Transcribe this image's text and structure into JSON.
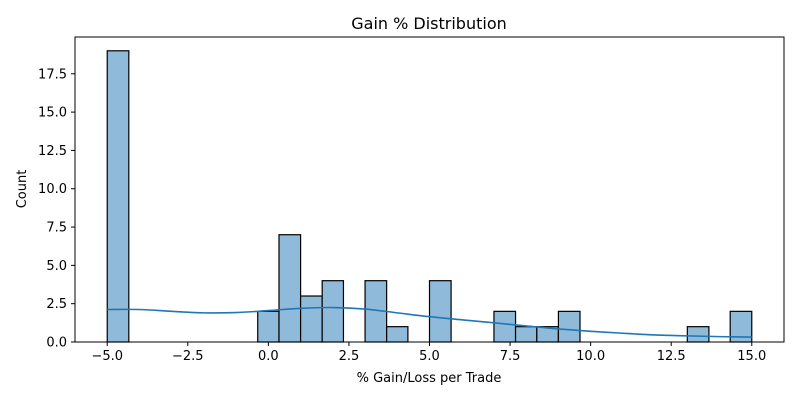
{
  "chart_data": {
    "type": "bar",
    "title": "Gain % Distribution",
    "xlabel": "% Gain/Loss per Trade",
    "ylabel": "Count",
    "xlim": [
      -6.0,
      16.0
    ],
    "ylim": [
      0,
      19.9
    ],
    "xticks": [
      -5.0,
      -2.5,
      0.0,
      2.5,
      5.0,
      7.5,
      10.0,
      12.5,
      15.0
    ],
    "xtick_labels": [
      "−5.0",
      "−2.5",
      "0.0",
      "2.5",
      "5.0",
      "7.5",
      "10.0",
      "12.5",
      "15.0"
    ],
    "yticks": [
      0.0,
      2.5,
      5.0,
      7.5,
      10.0,
      12.5,
      15.0,
      17.5
    ],
    "ytick_labels": [
      "0.0",
      "2.5",
      "5.0",
      "7.5",
      "10.0",
      "12.5",
      "15.0",
      "17.5"
    ],
    "bins": [
      {
        "x0": -5.0,
        "x1": -4.33,
        "count": 19
      },
      {
        "x0": -0.33,
        "x1": 0.33,
        "count": 2
      },
      {
        "x0": 0.33,
        "x1": 1.0,
        "count": 7
      },
      {
        "x0": 1.0,
        "x1": 1.67,
        "count": 3
      },
      {
        "x0": 1.67,
        "x1": 2.33,
        "count": 4
      },
      {
        "x0": 3.0,
        "x1": 3.67,
        "count": 4
      },
      {
        "x0": 3.67,
        "x1": 4.33,
        "count": 1
      },
      {
        "x0": 5.0,
        "x1": 5.67,
        "count": 4
      },
      {
        "x0": 7.0,
        "x1": 7.67,
        "count": 2
      },
      {
        "x0": 7.67,
        "x1": 8.33,
        "count": 1
      },
      {
        "x0": 8.33,
        "x1": 9.0,
        "count": 1
      },
      {
        "x0": 9.0,
        "x1": 9.67,
        "count": 2
      },
      {
        "x0": 13.0,
        "x1": 13.67,
        "count": 1
      },
      {
        "x0": 14.33,
        "x1": 15.0,
        "count": 2
      }
    ],
    "kde": {
      "x": [
        -5.0,
        -4.0,
        -3.0,
        -2.0,
        -1.0,
        0.0,
        1.0,
        2.0,
        3.0,
        4.0,
        5.0,
        6.0,
        7.0,
        8.0,
        9.0,
        10.0,
        11.0,
        12.0,
        13.0,
        14.0,
        15.0
      ],
      "y": [
        2.12,
        2.12,
        2.0,
        1.9,
        1.92,
        2.05,
        2.2,
        2.25,
        2.15,
        1.9,
        1.65,
        1.45,
        1.25,
        1.05,
        0.85,
        0.7,
        0.57,
        0.46,
        0.4,
        0.35,
        0.32
      ]
    },
    "colors": {
      "bar_fill": "#8fbad9",
      "bar_edge": "#000000",
      "kde_line": "#1f77b4",
      "axes": "#000000"
    },
    "grid": false,
    "legend": false
  }
}
